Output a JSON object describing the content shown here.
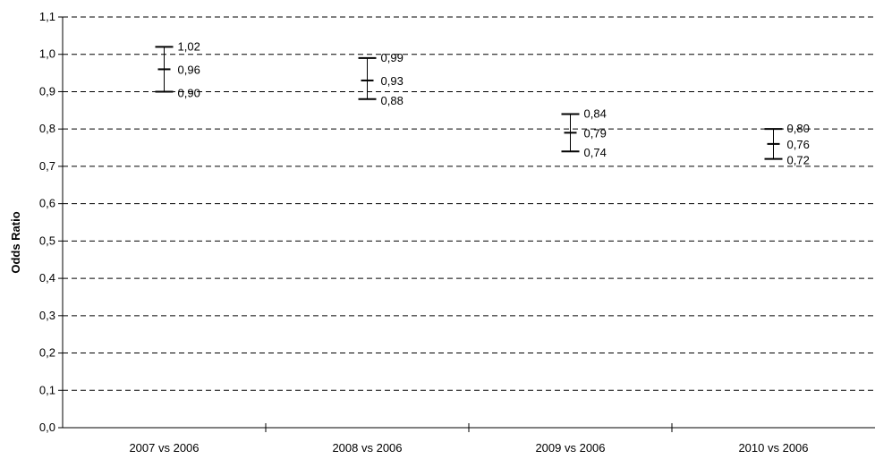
{
  "chart_data": {
    "type": "errorbar",
    "categories": [
      "2007 vs 2006",
      "2008 vs 2006",
      "2009 vs 2006",
      "2010 vs 2006"
    ],
    "series": [
      {
        "odds_ratio": 0.96,
        "ci_low": 0.9,
        "ci_high": 1.02
      },
      {
        "odds_ratio": 0.93,
        "ci_low": 0.88,
        "ci_high": 0.99
      },
      {
        "odds_ratio": 0.79,
        "ci_low": 0.74,
        "ci_high": 0.84
      },
      {
        "odds_ratio": 0.76,
        "ci_low": 0.72,
        "ci_high": 0.8
      }
    ],
    "point_labels": [
      {
        "high": "1,02",
        "mid": "0,96",
        "low": "0,90"
      },
      {
        "high": "0,99",
        "mid": "0,93",
        "low": "0,88"
      },
      {
        "high": "0,84",
        "mid": "0,79",
        "low": "0,74"
      },
      {
        "high": "0,80",
        "mid": "0,76",
        "low": "0,72"
      }
    ],
    "ylabel": "Odds Ratio",
    "xlabel": "",
    "ylim": [
      0,
      1.1
    ],
    "yticks": [
      0,
      0.1,
      0.2,
      0.3,
      0.4,
      0.5,
      0.6,
      0.7,
      0.8,
      0.9,
      1.0,
      1.1
    ],
    "ytick_labels": [
      "0,0",
      "0,1",
      "0,2",
      "0,3",
      "0,4",
      "0,5",
      "0,6",
      "0,7",
      "0,8",
      "0,9",
      "1,0",
      "1,1"
    ],
    "grid": "horizontal dashed",
    "colors": {
      "marks": "#000000",
      "grid": "#000000"
    }
  }
}
